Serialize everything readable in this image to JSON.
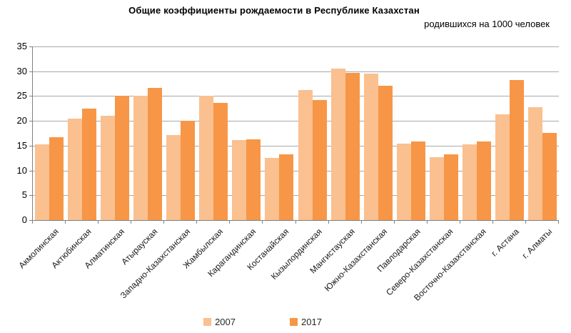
{
  "chart_data": {
    "type": "bar",
    "title": "Общие коэффициенты рождаемости  в Республике  Казахстан",
    "subtitle": "родившихся на 1000 человек",
    "categories": [
      "Акмолинская",
      "Актюбинская",
      "Алматинская",
      "Атырауская",
      "Западно-Казахстанская",
      "Жамбылская",
      "Карагандинская",
      "Костанайская",
      "Кызылординская",
      "Мангистауская",
      "Южно-Казахстанская",
      "Павлодарская",
      "Северо-Казахстанская",
      "Восточно-Казахстанская",
      "г. Астана",
      "г. Алматы"
    ],
    "series": [
      {
        "name": "2007",
        "color": "#FAC090",
        "values": [
          15.3,
          20.5,
          21.0,
          25.0,
          17.2,
          25.0,
          16.1,
          12.5,
          26.2,
          30.5,
          29.6,
          15.4,
          12.7,
          15.2,
          21.3,
          22.8
        ]
      },
      {
        "name": "2017",
        "color": "#F79646",
        "values": [
          16.7,
          22.4,
          25.0,
          26.7,
          20.0,
          23.6,
          16.3,
          13.3,
          24.2,
          29.7,
          27.1,
          15.9,
          13.2,
          15.9,
          28.3,
          17.6
        ]
      }
    ],
    "ylim": [
      0,
      35
    ],
    "ytick_step": 5,
    "grid": true,
    "legend_position": "bottom",
    "colors": {
      "axis": "#808080",
      "gridline": "#A8A8A8",
      "text": "#000000"
    }
  }
}
